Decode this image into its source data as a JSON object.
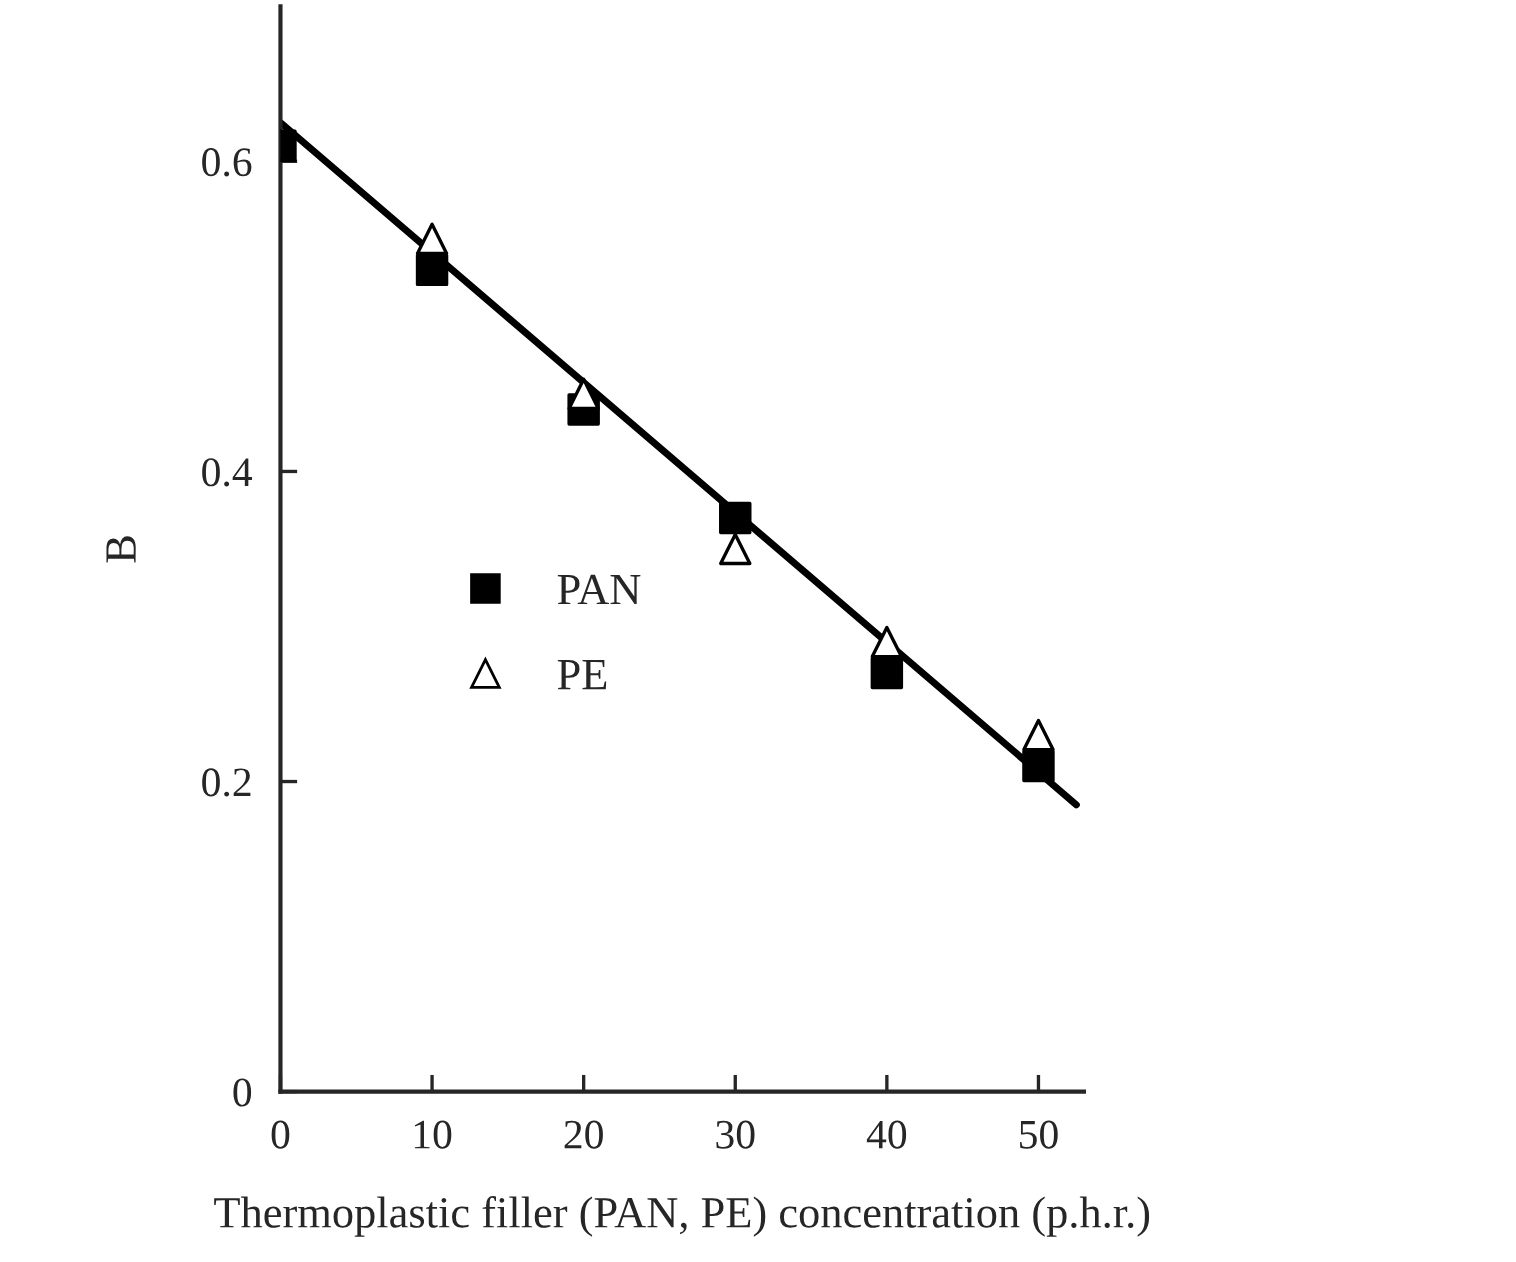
{
  "chart_data": {
    "type": "scatter",
    "xlabel": "Thermoplastic filler (PAN, PE) concentration (p.h.r.)",
    "ylabel": "B",
    "x": [
      0,
      10,
      20,
      30,
      40,
      50
    ],
    "series": [
      {
        "name": "PAN",
        "color": "#000000",
        "marker": "square",
        "values": [
          0.61,
          0.53,
          0.44,
          0.37,
          0.27,
          0.21
        ]
      },
      {
        "name": "PE",
        "color": "#000000",
        "marker": "triangle",
        "values": [
          null,
          0.55,
          0.45,
          0.35,
          0.29,
          0.23
        ]
      },
      {
        "type": "line",
        "color": "#000000",
        "x": [
          0,
          52.5
        ],
        "values": [
          0.625,
          0.185
        ],
        "marker": "none",
        "line_style": "solid"
      }
    ],
    "xlim": [
      0,
      53
    ],
    "ylim": [
      0,
      0.7
    ],
    "xticks": [
      0,
      10,
      20,
      30,
      40,
      50
    ],
    "yticks": [
      0,
      0.2,
      0.4,
      0.6
    ],
    "grid": false,
    "legend": "left"
  }
}
